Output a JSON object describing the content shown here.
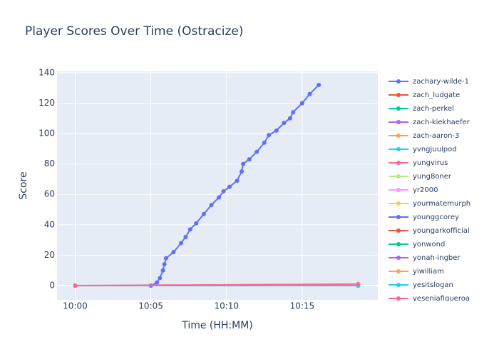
{
  "chart_data": {
    "type": "line",
    "title": "Player Scores Over Time (Ostracize)",
    "x_label": "Time (HH:MM)",
    "y_label": "Score",
    "xlim": [
      598.8,
      620.0
    ],
    "xticks": [
      {
        "value": 600,
        "label": "10:00"
      },
      {
        "value": 605,
        "label": "10:05"
      },
      {
        "value": 610,
        "label": "10:10"
      },
      {
        "value": 615,
        "label": "10:15"
      }
    ],
    "ylim": [
      -9.4,
      140.9
    ],
    "yticks": [
      0,
      20,
      40,
      60,
      80,
      100,
      120,
      140
    ],
    "grid": true,
    "legend": "right",
    "series": [
      {
        "name": "zachary-wilde-1",
        "color": "#636efa",
        "x": [
          605.0,
          605.4,
          605.6,
          605.8,
          605.9,
          606.0,
          606.5,
          607.0,
          607.3,
          607.6,
          608.0,
          608.5,
          609.0,
          609.5,
          609.8,
          610.2,
          610.7,
          611.0,
          611.1,
          611.5,
          612.0,
          612.5,
          612.8,
          613.3,
          613.8,
          614.2,
          614.4,
          615.0,
          615.5,
          616.1
        ],
        "values": [
          0,
          2,
          5,
          10,
          14,
          18,
          22,
          28,
          32,
          37,
          41,
          47,
          53,
          58,
          62,
          65,
          69,
          75,
          80,
          83,
          88,
          94,
          99,
          102,
          107,
          110,
          114,
          120,
          126,
          132
        ]
      },
      {
        "name": "zach_ludgate",
        "color": "#EF553B",
        "x": [
          600,
          618.7
        ],
        "values": [
          0,
          0
        ]
      },
      {
        "name": "zach-perkel",
        "color": "#00cc96",
        "x": [
          600,
          618.7
        ],
        "values": [
          0,
          0
        ]
      },
      {
        "name": "zach-kiekhaefer",
        "color": "#ab63fa",
        "x": [
          600,
          618.7
        ],
        "values": [
          0,
          0
        ]
      },
      {
        "name": "zach-aaron-3",
        "color": "#FFA15A",
        "x": [
          600,
          618.7
        ],
        "values": [
          0,
          0
        ]
      },
      {
        "name": "yvngjuulpod",
        "color": "#19d3f3",
        "x": [
          600,
          618.7
        ],
        "values": [
          0,
          0
        ]
      },
      {
        "name": "yungvirus",
        "color": "#FF6692",
        "x": [
          600,
          618.7
        ],
        "values": [
          0,
          0
        ]
      },
      {
        "name": "yung8oner",
        "color": "#B6E880",
        "x": [
          600,
          618.7
        ],
        "values": [
          0,
          0
        ]
      },
      {
        "name": "yr2000",
        "color": "#FF97FF",
        "x": [
          600,
          618.7
        ],
        "values": [
          0,
          0
        ]
      },
      {
        "name": "yourmatemurph",
        "color": "#FECB52",
        "x": [
          600,
          618.7
        ],
        "values": [
          0,
          0
        ]
      },
      {
        "name": "younggcorey",
        "color": "#636efa",
        "x": [
          600,
          618.7
        ],
        "values": [
          0,
          0
        ]
      },
      {
        "name": "youngarkofficial",
        "color": "#EF553B",
        "x": [
          600,
          618.7
        ],
        "values": [
          0,
          0
        ]
      },
      {
        "name": "yonwond",
        "color": "#00cc96",
        "x": [
          600,
          618.7
        ],
        "values": [
          0,
          0
        ]
      },
      {
        "name": "yonah-ingber",
        "color": "#ab63fa",
        "x": [
          600,
          618.7
        ],
        "values": [
          0,
          0
        ]
      },
      {
        "name": "yiwilliam",
        "color": "#FFA15A",
        "x": [
          600,
          618.7
        ],
        "values": [
          0,
          0
        ]
      },
      {
        "name": "yesitslogan",
        "color": "#19d3f3",
        "x": [
          600,
          618.7
        ],
        "values": [
          0,
          0
        ]
      },
      {
        "name": "yeseniafigueroa",
        "color": "#FF6692",
        "x": [
          600,
          618.7
        ],
        "values": [
          0,
          1
        ]
      }
    ]
  }
}
